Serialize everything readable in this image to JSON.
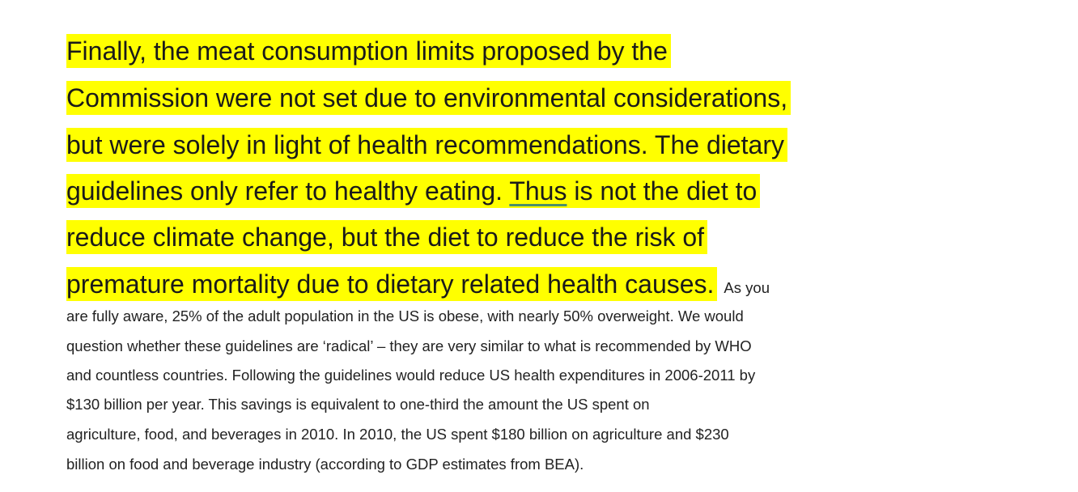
{
  "highlighted_lines": [
    "Finally, the meat consumption limits proposed by the",
    "Commission were not set due to environmental considerations,",
    "but were solely in light of health recommendations. The dietary",
    {
      "before": "guidelines only refer to healthy eating. ",
      "underlined": "Thus",
      "after": " is not the diet to"
    },
    "reduce climate change, but the diet to reduce the risk of",
    "premature mortality due to dietary related health causes."
  ],
  "body_lines": [
    "As you",
    "are fully aware, 25% of the adult population in the US is obese, with nearly 50% overweight. We would",
    "question whether these guidelines are ‘radical’ – they are very similar to what is recommended by WHO",
    "and countless countries. Following the guidelines would reduce US health expenditures in 2006-2011 by",
    "$130 billion per year. This savings is equivalent to one-third the amount the US spent on",
    "agriculture, food, and beverages in 2010. In 2010, the US spent $180 billion on agriculture and $230",
    "billion on food and beverage industry (according to GDP estimates from BEA)."
  ]
}
